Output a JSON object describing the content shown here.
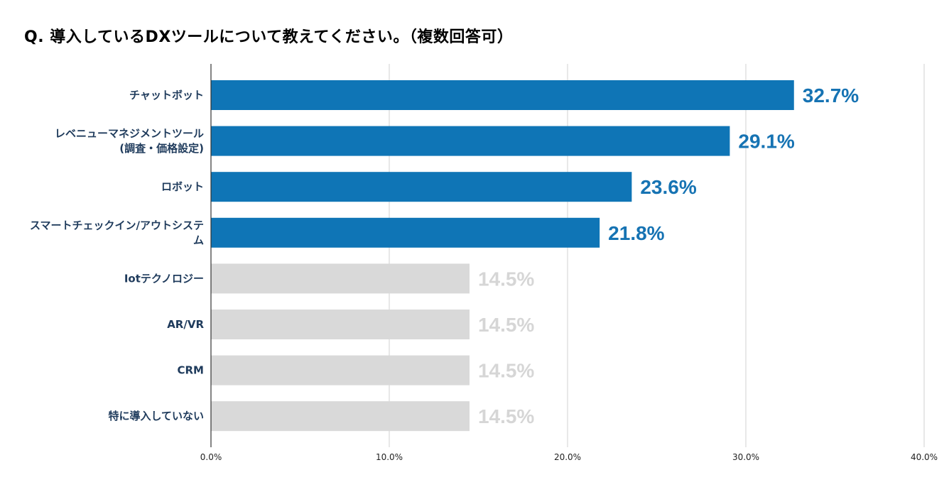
{
  "chart_data": {
    "type": "bar",
    "orientation": "horizontal",
    "title": "Q. 導入しているDXツールについて教えてください。（複数回答可）",
    "categories": [
      [
        "チャットボット"
      ],
      [
        "レベニューマネジメントツール",
        "(調査・価格設定)"
      ],
      [
        "ロボット"
      ],
      [
        "スマートチェックイン/アウトシステ",
        "ム"
      ],
      [
        "Iotテクノロジー"
      ],
      [
        "AR/VR"
      ],
      [
        "CRM"
      ],
      [
        "特に導入していない"
      ]
    ],
    "values": [
      32.7,
      29.1,
      23.6,
      21.8,
      14.5,
      14.5,
      14.5,
      14.5
    ],
    "value_labels": [
      "32.7%",
      "29.1%",
      "23.6%",
      "21.8%",
      "14.5%",
      "14.5%",
      "14.5%",
      "14.5%"
    ],
    "highlighted": [
      true,
      true,
      true,
      true,
      false,
      false,
      false,
      false
    ],
    "xlim": [
      0,
      40
    ],
    "xticks": [
      0,
      10,
      20,
      30,
      40
    ],
    "xtick_labels": [
      "0.0%",
      "10.0%",
      "20.0%",
      "30.0%",
      "40.0%"
    ],
    "grid": true,
    "colors": {
      "highlight_bar": "#0f75b6",
      "highlight_label": "#1673b3",
      "muted_bar": "#d9d9d9",
      "muted_label": "#d6d6d6",
      "category_text": "#1f3b5c",
      "gridline": "#d0d0d0",
      "axis": "#333333"
    }
  }
}
